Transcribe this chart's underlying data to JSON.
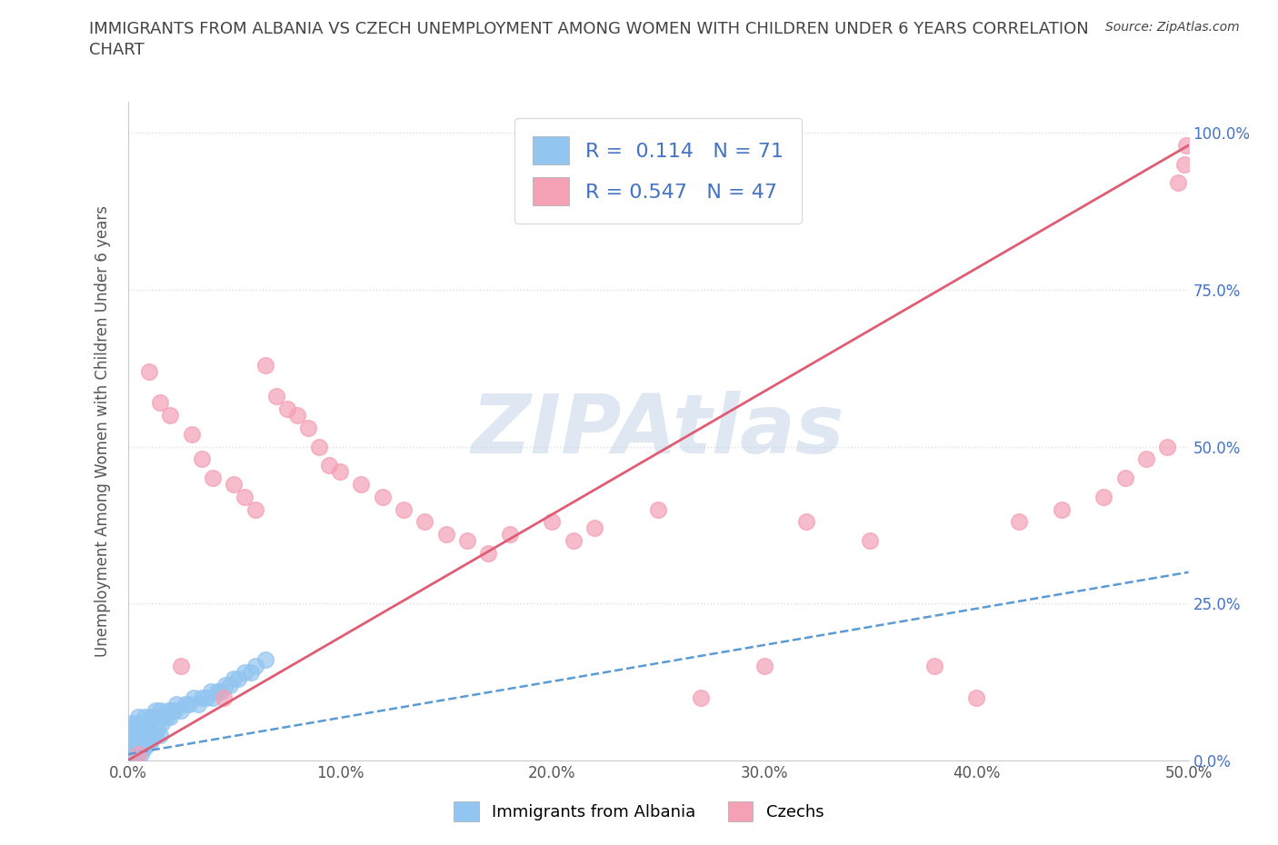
{
  "title_line1": "IMMIGRANTS FROM ALBANIA VS CZECH UNEMPLOYMENT AMONG WOMEN WITH CHILDREN UNDER 6 YEARS CORRELATION",
  "title_line2": "CHART",
  "source": "Source: ZipAtlas.com",
  "ylabel": "Unemployment Among Women with Children Under 6 years",
  "xlim": [
    0,
    0.5
  ],
  "ylim": [
    0,
    1.05
  ],
  "xticks": [
    0.0,
    0.1,
    0.2,
    0.3,
    0.4,
    0.5
  ],
  "yticks": [
    0.0,
    0.25,
    0.5,
    0.75,
    1.0
  ],
  "xticklabels": [
    "0.0%",
    "10.0%",
    "20.0%",
    "30.0%",
    "40.0%",
    "50.0%"
  ],
  "yticklabels": [
    "0.0%",
    "25.0%",
    "50.0%",
    "75.0%",
    "100.0%"
  ],
  "series1_color": "#92c5f0",
  "series2_color": "#f4a0b5",
  "line1_color": "#5b9bd5",
  "line2_color": "#e05c75",
  "R1": 0.114,
  "N1": 71,
  "R2": 0.547,
  "N2": 47,
  "watermark": "ZIPAtlas",
  "watermark_color": "#c8d8ea",
  "series1_label": "Immigrants from Albania",
  "series2_label": "Czechs",
  "background_color": "#ffffff",
  "title_color": "#444444",
  "title_fontsize": 13,
  "axis_label_color": "#555555",
  "tick_color": "#555555",
  "grid_color": "#dddddd",
  "legend_R_color": "#4472c4",
  "scatter1_x": [
    0.001,
    0.001,
    0.001,
    0.001,
    0.002,
    0.002,
    0.002,
    0.002,
    0.002,
    0.003,
    0.003,
    0.003,
    0.003,
    0.003,
    0.004,
    0.004,
    0.004,
    0.004,
    0.005,
    0.005,
    0.005,
    0.005,
    0.006,
    0.006,
    0.006,
    0.007,
    0.007,
    0.007,
    0.008,
    0.008,
    0.008,
    0.009,
    0.009,
    0.01,
    0.01,
    0.011,
    0.011,
    0.012,
    0.012,
    0.013,
    0.013,
    0.014,
    0.015,
    0.015,
    0.016,
    0.017,
    0.018,
    0.019,
    0.02,
    0.021,
    0.022,
    0.023,
    0.025,
    0.027,
    0.029,
    0.031,
    0.033,
    0.035,
    0.037,
    0.039,
    0.04,
    0.042,
    0.044,
    0.046,
    0.048,
    0.05,
    0.052,
    0.055,
    0.058,
    0.06,
    0.065
  ],
  "scatter1_y": [
    0.01,
    0.02,
    0.03,
    0.04,
    0.01,
    0.02,
    0.03,
    0.05,
    0.06,
    0.01,
    0.02,
    0.03,
    0.04,
    0.05,
    0.01,
    0.02,
    0.03,
    0.06,
    0.01,
    0.02,
    0.04,
    0.07,
    0.01,
    0.03,
    0.05,
    0.02,
    0.04,
    0.06,
    0.02,
    0.04,
    0.07,
    0.03,
    0.05,
    0.03,
    0.06,
    0.03,
    0.07,
    0.04,
    0.07,
    0.04,
    0.08,
    0.05,
    0.04,
    0.08,
    0.06,
    0.07,
    0.07,
    0.08,
    0.07,
    0.08,
    0.08,
    0.09,
    0.08,
    0.09,
    0.09,
    0.1,
    0.09,
    0.1,
    0.1,
    0.11,
    0.1,
    0.11,
    0.11,
    0.12,
    0.12,
    0.13,
    0.13,
    0.14,
    0.14,
    0.15,
    0.16
  ],
  "scatter2_x": [
    0.005,
    0.01,
    0.015,
    0.02,
    0.025,
    0.03,
    0.035,
    0.04,
    0.045,
    0.05,
    0.055,
    0.06,
    0.065,
    0.07,
    0.075,
    0.08,
    0.085,
    0.09,
    0.095,
    0.1,
    0.11,
    0.12,
    0.13,
    0.14,
    0.15,
    0.16,
    0.17,
    0.18,
    0.2,
    0.21,
    0.22,
    0.25,
    0.27,
    0.3,
    0.32,
    0.35,
    0.38,
    0.4,
    0.42,
    0.44,
    0.46,
    0.47,
    0.48,
    0.49,
    0.495,
    0.498,
    0.499
  ],
  "scatter2_y": [
    0.01,
    0.62,
    0.57,
    0.55,
    0.15,
    0.52,
    0.48,
    0.45,
    0.1,
    0.44,
    0.42,
    0.4,
    0.63,
    0.58,
    0.56,
    0.55,
    0.53,
    0.5,
    0.47,
    0.46,
    0.44,
    0.42,
    0.4,
    0.38,
    0.36,
    0.35,
    0.33,
    0.36,
    0.38,
    0.35,
    0.37,
    0.4,
    0.1,
    0.15,
    0.38,
    0.35,
    0.15,
    0.1,
    0.38,
    0.4,
    0.42,
    0.45,
    0.48,
    0.5,
    0.92,
    0.95,
    0.98
  ]
}
